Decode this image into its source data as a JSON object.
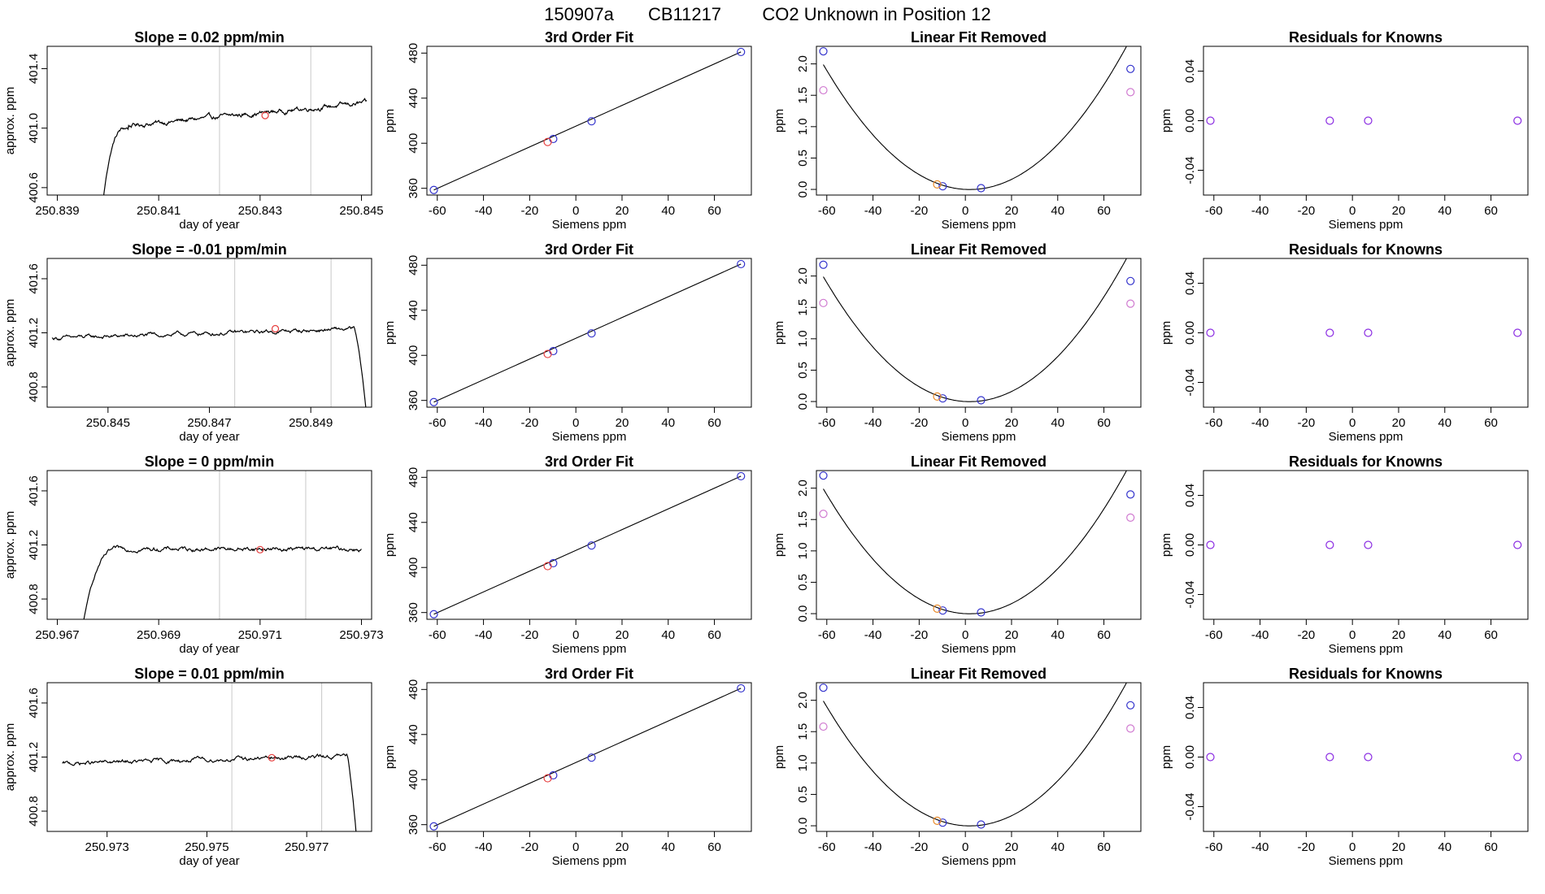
{
  "page_title": {
    "run_id": "150907a",
    "tank_id": "CB11217",
    "label": "CO2 Unknown in Position  12"
  },
  "colors": {
    "trace": "#000000",
    "vline": "#c8c8c8",
    "red_point": "#e63c3c",
    "blue_point": "#3232cc",
    "magenta_point": "#d07ad0",
    "orange_point": "#e88a2a",
    "purple_point": "#8a2be2"
  },
  "chart_data": [
    {
      "type": "line",
      "row": 0,
      "col": 0,
      "title": "Slope =  0.02  ppm/min",
      "xlabel": "day of year",
      "ylabel": "approx. ppm",
      "xlim": [
        250.8388,
        250.8452
      ],
      "ylim": [
        400.55,
        401.55
      ],
      "xticks": [
        250.839,
        250.841,
        250.843,
        250.845
      ],
      "xtick_labels": [
        "250.839",
        "250.841",
        "250.843",
        "250.845"
      ],
      "yticks": [
        400.6,
        401.0,
        401.4
      ],
      "ytick_labels": [
        "400.6",
        "401.0",
        "401.4"
      ],
      "vlines": [
        250.8422,
        250.844
      ],
      "marker": {
        "x": 250.8431,
        "y": 401.085
      },
      "trace": {
        "x_start": 250.8399,
        "x_end": 250.8451,
        "shape": "rise",
        "base": 401.0,
        "slope_total": 0.17,
        "rise_from": 400.5,
        "rise_end": 250.8404
      }
    },
    {
      "type": "line",
      "row": 1,
      "col": 0,
      "title": "Slope =  -0.01  ppm/min",
      "xlabel": "day of year",
      "ylabel": "approx. ppm",
      "xlim": [
        250.8438,
        250.8502
      ],
      "ylim": [
        400.65,
        401.75
      ],
      "xticks": [
        250.845,
        250.847,
        250.849
      ],
      "xtick_labels": [
        "250.845",
        "250.847",
        "250.849"
      ],
      "yticks": [
        400.8,
        401.2,
        401.6
      ],
      "ytick_labels": [
        "400.8",
        "401.2",
        "401.6"
      ],
      "vlines": [
        250.8475,
        250.8494
      ],
      "marker": {
        "x": 250.8483,
        "y": 401.23
      },
      "trace": {
        "x_start": 250.8439,
        "x_end": 250.8501,
        "shape": "drop",
        "base": 401.16,
        "slope_total": 0.07,
        "drop_start": 250.84985,
        "drop_to": 400.6
      }
    },
    {
      "type": "line",
      "row": 2,
      "col": 0,
      "title": "Slope =  0  ppm/min",
      "xlabel": "day of year",
      "ylabel": "approx. ppm",
      "xlim": [
        250.9668,
        250.9732
      ],
      "ylim": [
        400.65,
        401.75
      ],
      "xticks": [
        250.967,
        250.969,
        250.971,
        250.973
      ],
      "xtick_labels": [
        "250.967",
        "250.969",
        "250.971",
        "250.973"
      ],
      "yticks": [
        400.8,
        401.2,
        401.6
      ],
      "ytick_labels": [
        "400.8",
        "401.2",
        "401.6"
      ],
      "vlines": [
        250.9702,
        250.9719
      ],
      "marker": {
        "x": 250.971,
        "y": 401.165
      },
      "trace": {
        "x_start": 250.9675,
        "x_end": 250.973,
        "shape": "rise",
        "base": 401.17,
        "slope_total": 0.0,
        "rise_from": 400.6,
        "rise_end": 250.9683
      }
    },
    {
      "type": "line",
      "row": 3,
      "col": 0,
      "title": "Slope =  0.01  ppm/min",
      "xlabel": "day of year",
      "ylabel": "approx. ppm",
      "xlim": [
        250.9718,
        250.9783
      ],
      "ylim": [
        400.65,
        401.75
      ],
      "xticks": [
        250.973,
        250.975,
        250.977
      ],
      "xtick_labels": [
        "250.973",
        "250.975",
        "250.977"
      ],
      "yticks": [
        400.8,
        401.2,
        401.6
      ],
      "ytick_labels": [
        "400.8",
        "401.2",
        "401.6"
      ],
      "vlines": [
        250.9755,
        250.9773
      ],
      "marker": {
        "x": 250.9763,
        "y": 401.195
      },
      "trace": {
        "x_start": 250.9721,
        "x_end": 250.978,
        "shape": "drop",
        "base": 401.15,
        "slope_total": 0.06,
        "drop_start": 250.9778,
        "drop_to": 400.6
      }
    },
    {
      "type": "scatter",
      "row": 0,
      "col": 1,
      "title": "3rd Order Fit",
      "xlabel": "Siemens ppm",
      "ylabel": "ppm",
      "xlim": [
        -64.5,
        76
      ],
      "ylim": [
        354,
        486
      ],
      "xticks": [
        -60,
        -40,
        -20,
        0,
        20,
        40,
        60
      ],
      "xtick_labels": [
        "-60",
        "-40",
        "-20",
        "0",
        "20",
        "40",
        "60"
      ],
      "yticks": [
        360,
        400,
        440,
        480
      ],
      "ytick_labels": [
        "360",
        "400",
        "440",
        "480"
      ],
      "line": {
        "x": [
          -61.5,
          71.5
        ],
        "y": [
          358.5,
          481
        ]
      },
      "points_blue": [
        {
          "x": -61.5,
          "y": 358.5
        },
        {
          "x": -9.8,
          "y": 403.8
        },
        {
          "x": 6.8,
          "y": 419.5
        },
        {
          "x": 71.5,
          "y": 481
        }
      ],
      "points_red": [
        {
          "x": -12.2,
          "y": 401.1
        }
      ]
    },
    {
      "type": "scatter",
      "row": 1,
      "col": 1,
      "title": "3rd Order Fit",
      "xlabel": "Siemens ppm",
      "ylabel": "ppm",
      "xlim": [
        -64.5,
        76
      ],
      "ylim": [
        354,
        486
      ],
      "xticks": [
        -60,
        -40,
        -20,
        0,
        20,
        40,
        60
      ],
      "xtick_labels": [
        "-60",
        "-40",
        "-20",
        "0",
        "20",
        "40",
        "60"
      ],
      "yticks": [
        360,
        400,
        440,
        480
      ],
      "ytick_labels": [
        "360",
        "400",
        "440",
        "480"
      ],
      "line": {
        "x": [
          -61.5,
          71.5
        ],
        "y": [
          358.5,
          481
        ]
      },
      "points_blue": [
        {
          "x": -61.5,
          "y": 358.5
        },
        {
          "x": -9.8,
          "y": 403.8
        },
        {
          "x": 6.8,
          "y": 419.5
        },
        {
          "x": 71.5,
          "y": 481
        }
      ],
      "points_red": [
        {
          "x": -12.2,
          "y": 401.2
        }
      ]
    },
    {
      "type": "scatter",
      "row": 2,
      "col": 1,
      "title": "3rd Order Fit",
      "xlabel": "Siemens ppm",
      "ylabel": "ppm",
      "xlim": [
        -64.5,
        76
      ],
      "ylim": [
        354,
        486
      ],
      "xticks": [
        -60,
        -40,
        -20,
        0,
        20,
        40,
        60
      ],
      "xtick_labels": [
        "-60",
        "-40",
        "-20",
        "0",
        "20",
        "40",
        "60"
      ],
      "yticks": [
        360,
        400,
        440,
        480
      ],
      "ytick_labels": [
        "360",
        "400",
        "440",
        "480"
      ],
      "line": {
        "x": [
          -61.5,
          71.5
        ],
        "y": [
          358.5,
          481
        ]
      },
      "points_blue": [
        {
          "x": -61.5,
          "y": 358.5
        },
        {
          "x": -9.8,
          "y": 403.8
        },
        {
          "x": 6.8,
          "y": 419.5
        },
        {
          "x": 71.5,
          "y": 481
        }
      ],
      "points_red": [
        {
          "x": -12.2,
          "y": 401.2
        }
      ]
    },
    {
      "type": "scatter",
      "row": 3,
      "col": 1,
      "title": "3rd Order Fit",
      "xlabel": "Siemens ppm",
      "ylabel": "ppm",
      "xlim": [
        -64.5,
        76
      ],
      "ylim": [
        354,
        486
      ],
      "xticks": [
        -60,
        -40,
        -20,
        0,
        20,
        40,
        60
      ],
      "xtick_labels": [
        "-60",
        "-40",
        "-20",
        "0",
        "20",
        "40",
        "60"
      ],
      "yticks": [
        360,
        400,
        440,
        480
      ],
      "ytick_labels": [
        "360",
        "400",
        "440",
        "480"
      ],
      "line": {
        "x": [
          -61.5,
          71.5
        ],
        "y": [
          358.5,
          481
        ]
      },
      "points_blue": [
        {
          "x": -61.5,
          "y": 358.5
        },
        {
          "x": -9.8,
          "y": 403.8
        },
        {
          "x": 6.8,
          "y": 419.5
        },
        {
          "x": 71.5,
          "y": 481
        }
      ],
      "points_red": [
        {
          "x": -12.2,
          "y": 401.2
        }
      ]
    },
    {
      "type": "scatter",
      "row": 0,
      "col": 2,
      "title": "Linear Fit Removed",
      "xlabel": "Siemens ppm",
      "ylabel": "ppm",
      "xlim": [
        -64.5,
        76
      ],
      "ylim": [
        -0.09,
        2.28
      ],
      "xticks": [
        -60,
        -40,
        -20,
        0,
        20,
        40,
        60
      ],
      "xtick_labels": [
        "-60",
        "-40",
        "-20",
        "0",
        "20",
        "40",
        "60"
      ],
      "yticks": [
        0.0,
        0.5,
        1.0,
        1.5,
        2.0
      ],
      "ytick_labels": [
        "0.0",
        "0.5",
        "1.0",
        "1.5",
        "2.0"
      ],
      "curve": {
        "a": 0.000495,
        "b": -0.00189,
        "c": 0.0
      },
      "points_blue": [
        {
          "x": -61.5,
          "y": 2.2
        },
        {
          "x": -9.8,
          "y": 0.05
        },
        {
          "x": 6.8,
          "y": 0.02
        },
        {
          "x": 71.5,
          "y": 1.92
        }
      ],
      "points_orange": [
        {
          "x": -12.2,
          "y": 0.08
        }
      ],
      "points_magenta": [
        {
          "x": -61.5,
          "y": 1.58
        },
        {
          "x": 71.5,
          "y": 1.55
        }
      ]
    },
    {
      "type": "scatter",
      "row": 1,
      "col": 2,
      "title": "Linear Fit Removed",
      "xlabel": "Siemens ppm",
      "ylabel": "ppm",
      "xlim": [
        -64.5,
        76
      ],
      "ylim": [
        -0.09,
        2.28
      ],
      "xticks": [
        -60,
        -40,
        -20,
        0,
        20,
        40,
        60
      ],
      "xtick_labels": [
        "-60",
        "-40",
        "-20",
        "0",
        "20",
        "40",
        "60"
      ],
      "yticks": [
        0.0,
        0.5,
        1.0,
        1.5,
        2.0
      ],
      "ytick_labels": [
        "0.0",
        "0.5",
        "1.0",
        "1.5",
        "2.0"
      ],
      "curve": {
        "a": 0.000495,
        "b": -0.00189,
        "c": 0.0
      },
      "points_blue": [
        {
          "x": -61.5,
          "y": 2.18
        },
        {
          "x": -9.8,
          "y": 0.05
        },
        {
          "x": 6.8,
          "y": 0.02
        },
        {
          "x": 71.5,
          "y": 1.92
        }
      ],
      "points_orange": [
        {
          "x": -12.2,
          "y": 0.08
        }
      ],
      "points_magenta": [
        {
          "x": -61.5,
          "y": 1.57
        },
        {
          "x": 71.5,
          "y": 1.56
        }
      ]
    },
    {
      "type": "scatter",
      "row": 2,
      "col": 2,
      "title": "Linear Fit Removed",
      "xlabel": "Siemens ppm",
      "ylabel": "ppm",
      "xlim": [
        -64.5,
        76
      ],
      "ylim": [
        -0.09,
        2.28
      ],
      "xticks": [
        -60,
        -40,
        -20,
        0,
        20,
        40,
        60
      ],
      "xtick_labels": [
        "-60",
        "-40",
        "-20",
        "0",
        "20",
        "40",
        "60"
      ],
      "yticks": [
        0.0,
        0.5,
        1.0,
        1.5,
        2.0
      ],
      "ytick_labels": [
        "0.0",
        "0.5",
        "1.0",
        "1.5",
        "2.0"
      ],
      "curve": {
        "a": 0.000495,
        "b": -0.00189,
        "c": 0.0
      },
      "points_blue": [
        {
          "x": -61.5,
          "y": 2.2
        },
        {
          "x": -9.8,
          "y": 0.05
        },
        {
          "x": 6.8,
          "y": 0.02
        },
        {
          "x": 71.5,
          "y": 1.9
        }
      ],
      "points_orange": [
        {
          "x": -12.2,
          "y": 0.08
        }
      ],
      "points_magenta": [
        {
          "x": -61.5,
          "y": 1.59
        },
        {
          "x": 71.5,
          "y": 1.53
        }
      ]
    },
    {
      "type": "scatter",
      "row": 3,
      "col": 2,
      "title": "Linear Fit Removed",
      "xlabel": "Siemens ppm",
      "ylabel": "ppm",
      "xlim": [
        -64.5,
        76
      ],
      "ylim": [
        -0.09,
        2.28
      ],
      "xticks": [
        -60,
        -40,
        -20,
        0,
        20,
        40,
        60
      ],
      "xtick_labels": [
        "-60",
        "-40",
        "-20",
        "0",
        "20",
        "40",
        "60"
      ],
      "yticks": [
        0.0,
        0.5,
        1.0,
        1.5,
        2.0
      ],
      "ytick_labels": [
        "0.0",
        "0.5",
        "1.0",
        "1.5",
        "2.0"
      ],
      "curve": {
        "a": 0.000495,
        "b": -0.00189,
        "c": 0.0
      },
      "points_blue": [
        {
          "x": -61.5,
          "y": 2.2
        },
        {
          "x": -9.8,
          "y": 0.05
        },
        {
          "x": 6.8,
          "y": 0.02
        },
        {
          "x": 71.5,
          "y": 1.92
        }
      ],
      "points_orange": [
        {
          "x": -12.2,
          "y": 0.08
        }
      ],
      "points_magenta": [
        {
          "x": -61.5,
          "y": 1.58
        },
        {
          "x": 71.5,
          "y": 1.55
        }
      ]
    },
    {
      "type": "scatter",
      "row": 0,
      "col": 3,
      "title": "Residuals for Knowns",
      "xlabel": "Siemens ppm",
      "ylabel": "ppm",
      "xlim": [
        -64.5,
        76
      ],
      "ylim": [
        -0.06,
        0.06
      ],
      "xticks": [
        -60,
        -40,
        -20,
        0,
        20,
        40,
        60
      ],
      "xtick_labels": [
        "-60",
        "-40",
        "-20",
        "0",
        "20",
        "40",
        "60"
      ],
      "yticks": [
        -0.04,
        0.0,
        0.04
      ],
      "ytick_labels": [
        "-0.04",
        "0.00",
        "0.04"
      ],
      "points_purple": [
        {
          "x": -61.5,
          "y": 0.0
        },
        {
          "x": -9.8,
          "y": 0.0
        },
        {
          "x": 6.8,
          "y": 0.0
        },
        {
          "x": 71.5,
          "y": 0.0
        }
      ]
    },
    {
      "type": "scatter",
      "row": 1,
      "col": 3,
      "title": "Residuals for Knowns",
      "xlabel": "Siemens ppm",
      "ylabel": "ppm",
      "xlim": [
        -64.5,
        76
      ],
      "ylim": [
        -0.06,
        0.06
      ],
      "xticks": [
        -60,
        -40,
        -20,
        0,
        20,
        40,
        60
      ],
      "xtick_labels": [
        "-60",
        "-40",
        "-20",
        "0",
        "20",
        "40",
        "60"
      ],
      "yticks": [
        -0.04,
        0.0,
        0.04
      ],
      "ytick_labels": [
        "-0.04",
        "0.00",
        "0.04"
      ],
      "points_purple": [
        {
          "x": -61.5,
          "y": 0.0
        },
        {
          "x": -9.8,
          "y": 0.0
        },
        {
          "x": 6.8,
          "y": 0.0
        },
        {
          "x": 71.5,
          "y": 0.0
        }
      ]
    },
    {
      "type": "scatter",
      "row": 2,
      "col": 3,
      "title": "Residuals for Knowns",
      "xlabel": "Siemens ppm",
      "ylabel": "ppm",
      "xlim": [
        -64.5,
        76
      ],
      "ylim": [
        -0.06,
        0.06
      ],
      "xticks": [
        -60,
        -40,
        -20,
        0,
        20,
        40,
        60
      ],
      "xtick_labels": [
        "-60",
        "-40",
        "-20",
        "0",
        "20",
        "40",
        "60"
      ],
      "yticks": [
        -0.04,
        0.0,
        0.04
      ],
      "ytick_labels": [
        "-0.04",
        "0.00",
        "0.04"
      ],
      "points_purple": [
        {
          "x": -61.5,
          "y": 0.0
        },
        {
          "x": -9.8,
          "y": 0.0
        },
        {
          "x": 6.8,
          "y": 0.0
        },
        {
          "x": 71.5,
          "y": 0.0
        }
      ]
    },
    {
      "type": "scatter",
      "row": 3,
      "col": 3,
      "title": "Residuals for Knowns",
      "xlabel": "Siemens ppm",
      "ylabel": "ppm",
      "xlim": [
        -64.5,
        76
      ],
      "ylim": [
        -0.06,
        0.06
      ],
      "xticks": [
        -60,
        -40,
        -20,
        0,
        20,
        40,
        60
      ],
      "xtick_labels": [
        "-60",
        "-40",
        "-20",
        "0",
        "20",
        "40",
        "60"
      ],
      "yticks": [
        -0.04,
        0.0,
        0.04
      ],
      "ytick_labels": [
        "-0.04",
        "0.00",
        "0.04"
      ],
      "points_purple": [
        {
          "x": -61.5,
          "y": 0.0
        },
        {
          "x": -9.8,
          "y": 0.0
        },
        {
          "x": 6.8,
          "y": 0.0
        },
        {
          "x": 71.5,
          "y": 0.0
        }
      ]
    }
  ]
}
